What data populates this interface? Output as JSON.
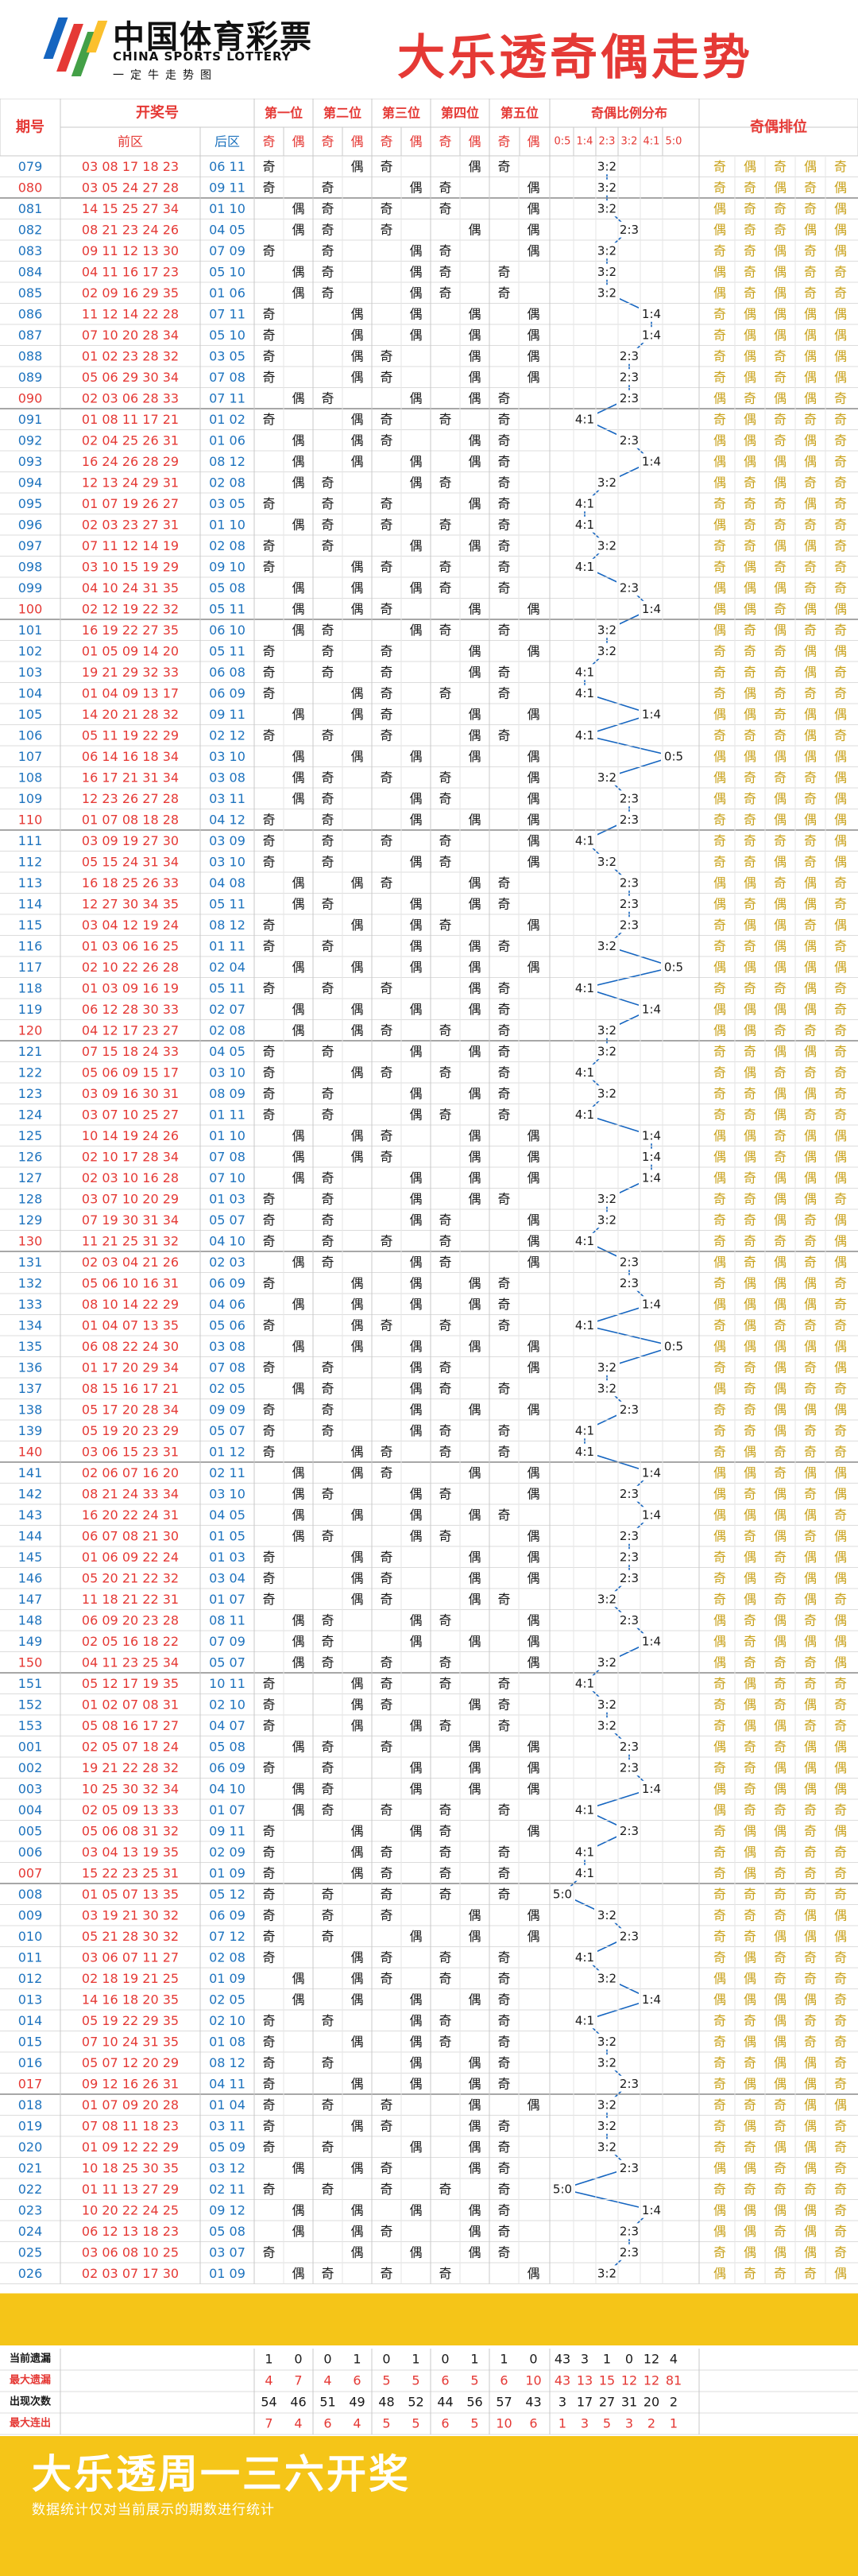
{
  "header": {
    "brand": "中国体育彩票",
    "brand_en": "CHINA SPORTS LOTTERY",
    "brand_sub": "一定牛走势图",
    "title": "大乐透奇偶走势"
  },
  "columns": {
    "period": "期号",
    "draw": "开奖号",
    "front": "前区",
    "back": "后区",
    "positions": [
      "第一位",
      "第二位",
      "第三位",
      "第四位",
      "第五位"
    ],
    "odd": "奇",
    "even": "偶",
    "ratio_title": "奇偶比例分布",
    "ratios": [
      "0:5",
      "1:4",
      "2:3",
      "3:2",
      "4:1",
      "5:0"
    ],
    "arrangement": "奇偶排位"
  },
  "rows": [
    {
      "p": "079",
      "f": "03 08 17 18 23",
      "b": "06 11"
    },
    {
      "p": "080",
      "f": "03 05 24 27 28",
      "b": "09 11"
    },
    {
      "p": "081",
      "f": "14 15 25 27 34",
      "b": "01 10"
    },
    {
      "p": "082",
      "f": "08 21 23 24 26",
      "b": "04 05"
    },
    {
      "p": "083",
      "f": "09 11 12 13 30",
      "b": "07 09"
    },
    {
      "p": "084",
      "f": "04 11 16 17 23",
      "b": "05 10"
    },
    {
      "p": "085",
      "f": "02 09 16 29 35",
      "b": "01 06"
    },
    {
      "p": "086",
      "f": "11 12 14 22 28",
      "b": "07 11"
    },
    {
      "p": "087",
      "f": "07 10 20 28 34",
      "b": "05 10"
    },
    {
      "p": "088",
      "f": "01 02 23 28 32",
      "b": "03 05"
    },
    {
      "p": "089",
      "f": "05 06 29 30 34",
      "b": "07 08"
    },
    {
      "p": "090",
      "f": "02 03 06 28 33",
      "b": "07 11"
    },
    {
      "p": "091",
      "f": "01 08 11 17 21",
      "b": "01 02"
    },
    {
      "p": "092",
      "f": "02 04 25 26 31",
      "b": "01 06"
    },
    {
      "p": "093",
      "f": "16 24 26 28 29",
      "b": "08 12"
    },
    {
      "p": "094",
      "f": "12 13 24 29 31",
      "b": "02 08"
    },
    {
      "p": "095",
      "f": "01 07 19 26 27",
      "b": "03 05"
    },
    {
      "p": "096",
      "f": "02 03 23 27 31",
      "b": "01 10"
    },
    {
      "p": "097",
      "f": "07 11 12 14 19",
      "b": "02 08"
    },
    {
      "p": "098",
      "f": "03 10 15 19 29",
      "b": "09 10"
    },
    {
      "p": "099",
      "f": "04 10 24 31 35",
      "b": "05 08"
    },
    {
      "p": "100",
      "f": "02 12 19 22 32",
      "b": "05 11"
    },
    {
      "p": "101",
      "f": "16 19 22 27 35",
      "b": "06 10"
    },
    {
      "p": "102",
      "f": "01 05 09 14 20",
      "b": "05 11"
    },
    {
      "p": "103",
      "f": "19 21 29 32 33",
      "b": "06 08"
    },
    {
      "p": "104",
      "f": "01 04 09 13 17",
      "b": "06 09"
    },
    {
      "p": "105",
      "f": "14 20 21 28 32",
      "b": "09 11"
    },
    {
      "p": "106",
      "f": "05 11 19 22 29",
      "b": "02 12"
    },
    {
      "p": "107",
      "f": "06 14 16 18 34",
      "b": "03 10"
    },
    {
      "p": "108",
      "f": "16 17 21 31 34",
      "b": "03 08"
    },
    {
      "p": "109",
      "f": "12 23 26 27 28",
      "b": "03 11"
    },
    {
      "p": "110",
      "f": "01 07 08 18 28",
      "b": "04 12"
    },
    {
      "p": "111",
      "f": "03 09 19 27 30",
      "b": "03 09"
    },
    {
      "p": "112",
      "f": "05 15 24 31 34",
      "b": "03 10"
    },
    {
      "p": "113",
      "f": "16 18 25 26 33",
      "b": "04 08"
    },
    {
      "p": "114",
      "f": "12 27 30 34 35",
      "b": "05 11"
    },
    {
      "p": "115",
      "f": "03 04 12 19 24",
      "b": "08 12"
    },
    {
      "p": "116",
      "f": "01 03 06 16 25",
      "b": "01 11"
    },
    {
      "p": "117",
      "f": "02 10 22 26 28",
      "b": "02 04"
    },
    {
      "p": "118",
      "f": "01 03 09 16 19",
      "b": "05 11"
    },
    {
      "p": "119",
      "f": "06 12 28 30 33",
      "b": "02 07"
    },
    {
      "p": "120",
      "f": "04 12 17 23 27",
      "b": "02 08"
    },
    {
      "p": "121",
      "f": "07 15 18 24 33",
      "b": "04 05"
    },
    {
      "p": "122",
      "f": "05 06 09 15 17",
      "b": "03 10"
    },
    {
      "p": "123",
      "f": "03 09 16 30 31",
      "b": "08 09"
    },
    {
      "p": "124",
      "f": "03 07 10 25 27",
      "b": "01 11"
    },
    {
      "p": "125",
      "f": "10 14 19 24 26",
      "b": "01 10"
    },
    {
      "p": "126",
      "f": "02 10 17 28 34",
      "b": "07 08"
    },
    {
      "p": "127",
      "f": "02 03 10 16 28",
      "b": "07 10"
    },
    {
      "p": "128",
      "f": "03 07 10 20 29",
      "b": "01 03"
    },
    {
      "p": "129",
      "f": "07 19 30 31 34",
      "b": "05 07"
    },
    {
      "p": "130",
      "f": "11 21 25 31 32",
      "b": "04 10"
    },
    {
      "p": "131",
      "f": "02 03 04 21 26",
      "b": "02 03"
    },
    {
      "p": "132",
      "f": "05 06 10 16 31",
      "b": "06 09"
    },
    {
      "p": "133",
      "f": "08 10 14 22 29",
      "b": "04 06"
    },
    {
      "p": "134",
      "f": "01 04 07 13 35",
      "b": "05 06"
    },
    {
      "p": "135",
      "f": "06 08 22 24 30",
      "b": "03 08"
    },
    {
      "p": "136",
      "f": "01 17 20 29 34",
      "b": "07 08"
    },
    {
      "p": "137",
      "f": "08 15 16 17 21",
      "b": "02 05"
    },
    {
      "p": "138",
      "f": "05 17 20 28 34",
      "b": "09 09"
    },
    {
      "p": "139",
      "f": "05 19 20 23 29",
      "b": "05 07"
    },
    {
      "p": "140",
      "f": "03 06 15 23 31",
      "b": "01 12"
    },
    {
      "p": "141",
      "f": "02 06 07 16 20",
      "b": "02 11"
    },
    {
      "p": "142",
      "f": "08 21 24 33 34",
      "b": "03 10"
    },
    {
      "p": "143",
      "f": "16 20 22 24 31",
      "b": "04 05"
    },
    {
      "p": "144",
      "f": "06 07 08 21 30",
      "b": "01 05"
    },
    {
      "p": "145",
      "f": "01 06 09 22 24",
      "b": "01 03"
    },
    {
      "p": "146",
      "f": "05 20 21 22 32",
      "b": "03 04"
    },
    {
      "p": "147",
      "f": "11 18 21 22 31",
      "b": "01 07"
    },
    {
      "p": "148",
      "f": "06 09 20 23 28",
      "b": "08 11"
    },
    {
      "p": "149",
      "f": "02 05 16 18 22",
      "b": "07 09"
    },
    {
      "p": "150",
      "f": "04 11 23 25 34",
      "b": "05 07"
    },
    {
      "p": "151",
      "f": "05 12 17 19 35",
      "b": "10 11"
    },
    {
      "p": "152",
      "f": "01 02 07 08 31",
      "b": "02 10"
    },
    {
      "p": "153",
      "f": "05 08 16 17 27",
      "b": "04 07"
    },
    {
      "p": "001",
      "f": "02 05 07 18 24",
      "b": "05 08"
    },
    {
      "p": "002",
      "f": "19 21 22 28 32",
      "b": "06 09"
    },
    {
      "p": "003",
      "f": "10 25 30 32 34",
      "b": "04 10"
    },
    {
      "p": "004",
      "f": "02 05 09 13 33",
      "b": "01 07"
    },
    {
      "p": "005",
      "f": "05 06 08 31 32",
      "b": "09 11"
    },
    {
      "p": "006",
      "f": "03 04 13 19 35",
      "b": "02 09"
    },
    {
      "p": "007",
      "f": "15 22 23 25 31",
      "b": "01 09"
    },
    {
      "p": "008",
      "f": "01 05 07 13 35",
      "b": "05 12"
    },
    {
      "p": "009",
      "f": "03 19 21 30 32",
      "b": "06 09"
    },
    {
      "p": "010",
      "f": "05 21 28 30 32",
      "b": "07 12"
    },
    {
      "p": "011",
      "f": "03 06 07 11 27",
      "b": "02 08"
    },
    {
      "p": "012",
      "f": "02 18 19 21 25",
      "b": "01 09"
    },
    {
      "p": "013",
      "f": "14 16 18 20 35",
      "b": "02 05"
    },
    {
      "p": "014",
      "f": "05 19 22 29 35",
      "b": "02 10"
    },
    {
      "p": "015",
      "f": "07 10 24 31 35",
      "b": "01 08"
    },
    {
      "p": "016",
      "f": "05 07 12 20 29",
      "b": "08 12"
    },
    {
      "p": "017",
      "f": "09 12 16 26 31",
      "b": "04 11"
    },
    {
      "p": "018",
      "f": "01 07 09 20 28",
      "b": "01 04"
    },
    {
      "p": "019",
      "f": "07 08 11 18 23",
      "b": "03 11"
    },
    {
      "p": "020",
      "f": "01 09 12 22 29",
      "b": "05 09"
    },
    {
      "p": "021",
      "f": "10 18 25 30 35",
      "b": "03 12"
    },
    {
      "p": "022",
      "f": "01 11 13 27 29",
      "b": "02 11"
    },
    {
      "p": "023",
      "f": "10 20 22 24 25",
      "b": "09 12"
    },
    {
      "p": "024",
      "f": "06 12 13 18 23",
      "b": "05 08"
    },
    {
      "p": "025",
      "f": "03 06 08 10 25",
      "b": "03 07"
    },
    {
      "p": "026",
      "f": "02 03 07 17 30",
      "b": "01 09"
    }
  ],
  "stats": [
    {
      "label": "当前遗漏",
      "color": "#1a1a1a",
      "values": [
        "1",
        "0",
        "0",
        "1",
        "0",
        "1",
        "0",
        "1",
        "1",
        "0",
        "43",
        "3",
        "1",
        "0",
        "12",
        "4"
      ]
    },
    {
      "label": "最大遗漏",
      "color": "#e53935",
      "values": [
        "4",
        "7",
        "4",
        "6",
        "5",
        "5",
        "6",
        "5",
        "6",
        "10",
        "43",
        "13",
        "15",
        "12",
        "12",
        "81"
      ]
    },
    {
      "label": "出现次数",
      "color": "#1a1a1a",
      "values": [
        "54",
        "46",
        "51",
        "49",
        "48",
        "52",
        "44",
        "56",
        "57",
        "43",
        "3",
        "17",
        "27",
        "31",
        "20",
        "2"
      ]
    },
    {
      "label": "最大连出",
      "color": "#e53935",
      "values": [
        "7",
        "4",
        "6",
        "4",
        "5",
        "5",
        "6",
        "5",
        "10",
        "6",
        "1",
        "3",
        "5",
        "3",
        "2",
        "1"
      ]
    }
  ],
  "footer": {
    "title": "大乐透周一三六开奖",
    "note": "数据统计仅对当前展示的期数进行统计"
  },
  "colors": {
    "period_blue": "#1e73be",
    "front_red": "#e53935",
    "back_blue": "#1e73be",
    "gold": "#c9a21b",
    "line": "#1565c0",
    "yellow": "#f5c518"
  }
}
